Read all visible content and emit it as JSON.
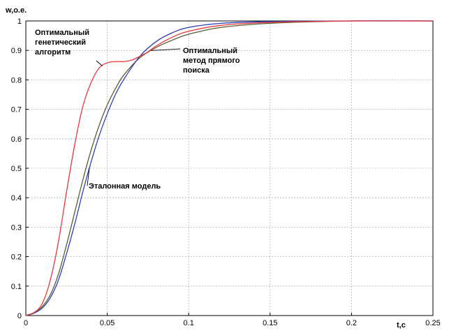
{
  "chart_data": {
    "type": "line",
    "ylabel": "w,o.e.",
    "xlabel": "t,c",
    "xlim": [
      0,
      0.25
    ],
    "ylim": [
      0,
      1
    ],
    "grid": true,
    "x_ticks": [
      "0",
      "0.05",
      "0.1",
      "0.15",
      "0.2",
      "0.25"
    ],
    "y_ticks": [
      "0",
      "0.1",
      "0.2",
      "0.3",
      "0.4",
      "0.5",
      "0.6",
      "0.7",
      "0.8",
      "0.9",
      "1"
    ],
    "series": [
      {
        "name": "Оптимальный генетический алгоритм",
        "color": "#e8373a",
        "points": [
          [
            0,
            0
          ],
          [
            0.005,
            0.01
          ],
          [
            0.01,
            0.04
          ],
          [
            0.015,
            0.12
          ],
          [
            0.02,
            0.25
          ],
          [
            0.025,
            0.42
          ],
          [
            0.03,
            0.58
          ],
          [
            0.035,
            0.71
          ],
          [
            0.04,
            0.79
          ],
          [
            0.045,
            0.84
          ],
          [
            0.05,
            0.858
          ],
          [
            0.055,
            0.862
          ],
          [
            0.06,
            0.862
          ],
          [
            0.065,
            0.867
          ],
          [
            0.07,
            0.88
          ],
          [
            0.075,
            0.895
          ],
          [
            0.08,
            0.915
          ],
          [
            0.09,
            0.945
          ],
          [
            0.1,
            0.965
          ],
          [
            0.12,
            0.985
          ],
          [
            0.15,
            0.995
          ],
          [
            0.2,
            1.0
          ],
          [
            0.25,
            1.0
          ]
        ]
      },
      {
        "name": "Оптимальный метод прямого поиска",
        "color": "#5a5a32",
        "points": [
          [
            0,
            0
          ],
          [
            0.005,
            0.01
          ],
          [
            0.01,
            0.03
          ],
          [
            0.015,
            0.07
          ],
          [
            0.02,
            0.14
          ],
          [
            0.025,
            0.24
          ],
          [
            0.03,
            0.35
          ],
          [
            0.035,
            0.46
          ],
          [
            0.04,
            0.56
          ],
          [
            0.045,
            0.645
          ],
          [
            0.05,
            0.715
          ],
          [
            0.055,
            0.77
          ],
          [
            0.06,
            0.815
          ],
          [
            0.07,
            0.875
          ],
          [
            0.08,
            0.91
          ],
          [
            0.09,
            0.935
          ],
          [
            0.1,
            0.955
          ],
          [
            0.12,
            0.978
          ],
          [
            0.15,
            0.992
          ],
          [
            0.2,
            1.0
          ],
          [
            0.25,
            1.0
          ]
        ]
      },
      {
        "name": "Эталонная модель",
        "color": "#2e3cb8",
        "points": [
          [
            0,
            0
          ],
          [
            0.005,
            0.008
          ],
          [
            0.01,
            0.025
          ],
          [
            0.015,
            0.06
          ],
          [
            0.02,
            0.12
          ],
          [
            0.025,
            0.21
          ],
          [
            0.03,
            0.31
          ],
          [
            0.035,
            0.42
          ],
          [
            0.04,
            0.52
          ],
          [
            0.045,
            0.61
          ],
          [
            0.05,
            0.685
          ],
          [
            0.055,
            0.75
          ],
          [
            0.06,
            0.8
          ],
          [
            0.07,
            0.88
          ],
          [
            0.08,
            0.93
          ],
          [
            0.09,
            0.96
          ],
          [
            0.1,
            0.978
          ],
          [
            0.12,
            0.992
          ],
          [
            0.15,
            0.998
          ],
          [
            0.2,
            1.0
          ],
          [
            0.25,
            1.0
          ]
        ]
      }
    ],
    "annotations": [
      {
        "series": 0,
        "lines": [
          "Оптимальный",
          "генетический",
          "алгоритм"
        ]
      },
      {
        "series": 1,
        "lines": [
          "Оптимальный",
          "метод прямого",
          "поиска"
        ]
      },
      {
        "series": 2,
        "lines": [
          "Эталонная модель"
        ]
      }
    ]
  }
}
